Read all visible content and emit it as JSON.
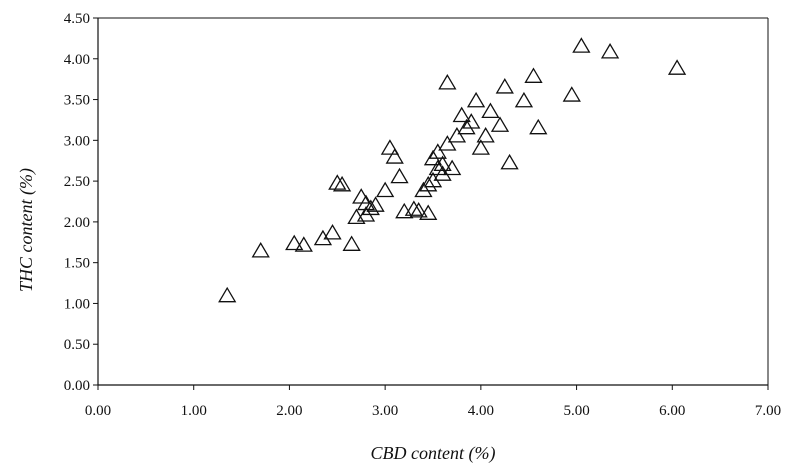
{
  "chart_data": {
    "type": "scatter",
    "title": "",
    "xlabel": "CBD content (%)",
    "ylabel": "THC content (%)",
    "xlim": [
      0,
      7
    ],
    "ylim": [
      0,
      4.5
    ],
    "x_ticks": [
      "0.00",
      "1.00",
      "2.00",
      "3.00",
      "4.00",
      "5.00",
      "6.00",
      "7.00"
    ],
    "y_ticks": [
      "0.00",
      "0.50",
      "1.00",
      "1.50",
      "2.00",
      "2.50",
      "3.00",
      "3.50",
      "4.00",
      "4.50"
    ],
    "x_tick_values": [
      0,
      1,
      2,
      3,
      4,
      5,
      6,
      7
    ],
    "y_tick_values": [
      0,
      0.5,
      1,
      1.5,
      2,
      2.5,
      3,
      3.5,
      4,
      4.5
    ],
    "grid": false,
    "legend": "none",
    "marker": "open-triangle",
    "points": [
      [
        1.35,
        1.09
      ],
      [
        1.7,
        1.64
      ],
      [
        2.05,
        1.73
      ],
      [
        2.15,
        1.71
      ],
      [
        2.35,
        1.79
      ],
      [
        2.45,
        1.86
      ],
      [
        2.5,
        2.47
      ],
      [
        2.55,
        2.45
      ],
      [
        2.65,
        1.72
      ],
      [
        2.7,
        2.05
      ],
      [
        2.75,
        2.3
      ],
      [
        2.8,
        2.22
      ],
      [
        2.85,
        2.16
      ],
      [
        2.8,
        2.08
      ],
      [
        2.9,
        2.2
      ],
      [
        3.0,
        2.38
      ],
      [
        3.05,
        2.9
      ],
      [
        3.1,
        2.79
      ],
      [
        3.15,
        2.55
      ],
      [
        3.2,
        2.12
      ],
      [
        3.3,
        2.15
      ],
      [
        3.35,
        2.13
      ],
      [
        3.4,
        2.38
      ],
      [
        3.45,
        2.1
      ],
      [
        3.45,
        2.45
      ],
      [
        3.5,
        2.5
      ],
      [
        3.5,
        2.77
      ],
      [
        3.55,
        2.65
      ],
      [
        3.55,
        2.85
      ],
      [
        3.6,
        2.7
      ],
      [
        3.6,
        2.58
      ],
      [
        3.65,
        2.95
      ],
      [
        3.65,
        3.7
      ],
      [
        3.7,
        2.65
      ],
      [
        3.75,
        3.05
      ],
      [
        3.8,
        3.3
      ],
      [
        3.85,
        3.15
      ],
      [
        3.9,
        3.22
      ],
      [
        3.95,
        3.48
      ],
      [
        4.0,
        2.9
      ],
      [
        4.05,
        3.05
      ],
      [
        4.1,
        3.35
      ],
      [
        4.2,
        3.18
      ],
      [
        4.25,
        3.65
      ],
      [
        4.3,
        2.72
      ],
      [
        4.45,
        3.48
      ],
      [
        4.55,
        3.78
      ],
      [
        4.6,
        3.15
      ],
      [
        4.95,
        3.55
      ],
      [
        5.05,
        4.15
      ],
      [
        5.35,
        4.08
      ],
      [
        6.05,
        3.88
      ]
    ]
  }
}
